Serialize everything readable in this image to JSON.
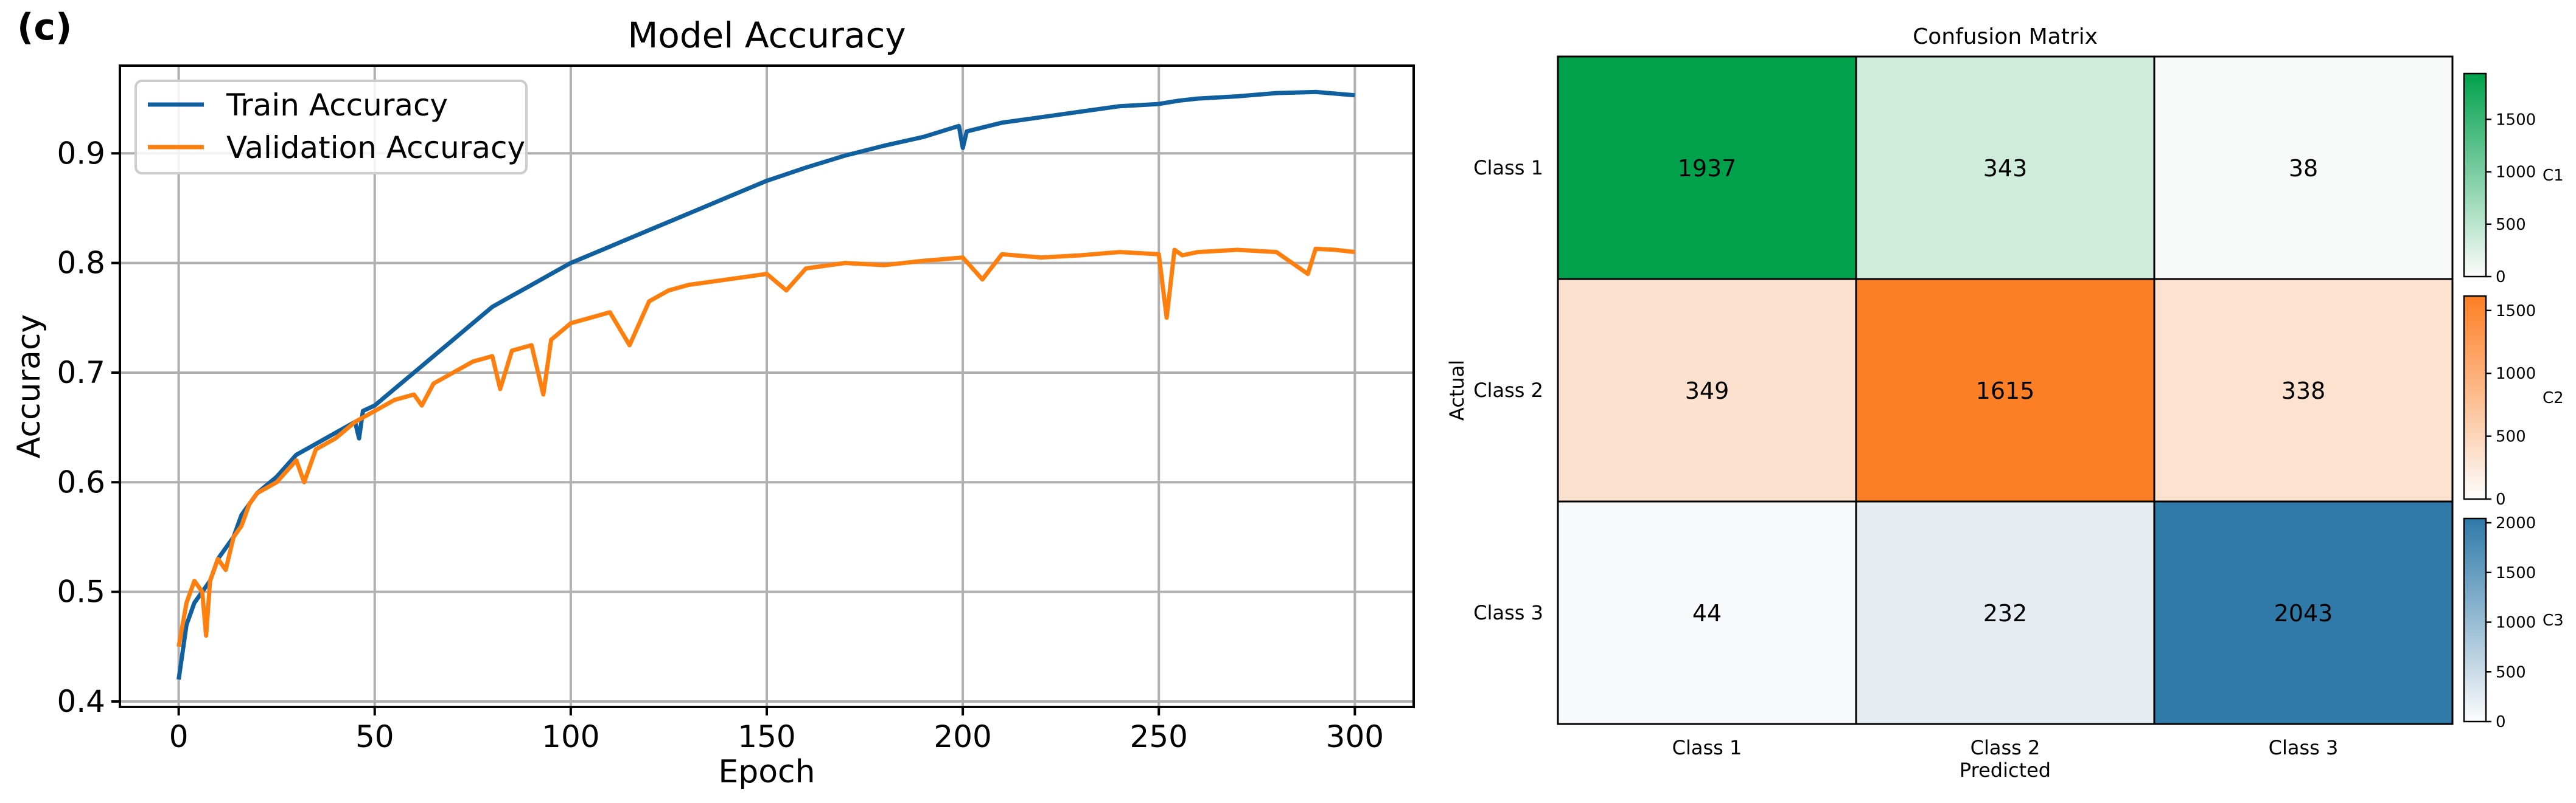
{
  "panel_label": "(c)",
  "chart_data": [
    {
      "type": "line",
      "title": "Model Accuracy",
      "xlabel": "Epoch",
      "ylabel": "Accuracy",
      "xlim": [
        -15,
        315
      ],
      "ylim": [
        0.395,
        0.98
      ],
      "grid": true,
      "legend_position": "top-left",
      "xticks": [
        0,
        50,
        100,
        150,
        200,
        250,
        300
      ],
      "yticks": [
        0.4,
        0.5,
        0.6,
        0.7,
        0.8,
        0.9
      ],
      "series": [
        {
          "name": "Train Accuracy",
          "color": "#1060a0",
          "x": [
            0,
            2,
            4,
            6,
            8,
            10,
            12,
            14,
            16,
            18,
            20,
            25,
            30,
            35,
            40,
            45,
            46,
            47,
            50,
            55,
            60,
            65,
            70,
            75,
            80,
            85,
            90,
            95,
            100,
            110,
            120,
            130,
            140,
            150,
            160,
            170,
            180,
            190,
            199,
            200,
            201,
            210,
            220,
            230,
            240,
            250,
            255,
            260,
            270,
            280,
            290,
            300
          ],
          "y": [
            0.42,
            0.47,
            0.49,
            0.5,
            0.51,
            0.53,
            0.54,
            0.55,
            0.57,
            0.58,
            0.59,
            0.605,
            0.625,
            0.635,
            0.645,
            0.655,
            0.64,
            0.665,
            0.67,
            0.685,
            0.7,
            0.715,
            0.73,
            0.745,
            0.76,
            0.77,
            0.78,
            0.79,
            0.8,
            0.815,
            0.83,
            0.845,
            0.86,
            0.875,
            0.887,
            0.898,
            0.907,
            0.915,
            0.925,
            0.905,
            0.92,
            0.928,
            0.933,
            0.938,
            0.943,
            0.945,
            0.948,
            0.95,
            0.952,
            0.955,
            0.956,
            0.953
          ]
        },
        {
          "name": "Validation Accuracy",
          "color": "#ff7f0e",
          "x": [
            0,
            2,
            4,
            6,
            7,
            8,
            10,
            12,
            14,
            16,
            18,
            20,
            25,
            30,
            32,
            35,
            40,
            45,
            50,
            55,
            60,
            62,
            65,
            70,
            75,
            80,
            82,
            85,
            90,
            93,
            95,
            100,
            110,
            115,
            120,
            125,
            130,
            140,
            150,
            155,
            160,
            170,
            180,
            190,
            200,
            205,
            210,
            220,
            230,
            240,
            250,
            252,
            254,
            256,
            260,
            270,
            280,
            288,
            290,
            295,
            300
          ],
          "y": [
            0.45,
            0.49,
            0.51,
            0.5,
            0.46,
            0.51,
            0.53,
            0.52,
            0.55,
            0.56,
            0.58,
            0.59,
            0.6,
            0.62,
            0.6,
            0.63,
            0.64,
            0.655,
            0.665,
            0.675,
            0.68,
            0.67,
            0.69,
            0.7,
            0.71,
            0.715,
            0.685,
            0.72,
            0.725,
            0.68,
            0.73,
            0.745,
            0.755,
            0.725,
            0.765,
            0.775,
            0.78,
            0.785,
            0.79,
            0.775,
            0.795,
            0.8,
            0.798,
            0.802,
            0.805,
            0.785,
            0.808,
            0.805,
            0.807,
            0.81,
            0.808,
            0.75,
            0.812,
            0.807,
            0.81,
            0.812,
            0.81,
            0.79,
            0.813,
            0.812,
            0.81
          ]
        }
      ]
    },
    {
      "type": "heatmap",
      "title": "Confusion Matrix",
      "xlabel": "Predicted",
      "ylabel": "Actual",
      "categories": [
        "Class 1",
        "Class 2",
        "Class 3"
      ],
      "values": [
        [
          1937,
          343,
          38
        ],
        [
          349,
          1615,
          338
        ],
        [
          44,
          232,
          2043
        ]
      ],
      "colorbars": [
        {
          "label": "C1",
          "color": "#00a14b",
          "max": 1937,
          "ticks": [
            0,
            500,
            1000,
            1500
          ]
        },
        {
          "label": "C2",
          "color": "#fd7f25",
          "max": 1615,
          "ticks": [
            0,
            500,
            1000,
            1500
          ]
        },
        {
          "label": "C3",
          "color": "#2f7aa8",
          "max": 2043,
          "ticks": [
            0,
            500,
            1000,
            1500,
            2000
          ]
        }
      ]
    }
  ]
}
